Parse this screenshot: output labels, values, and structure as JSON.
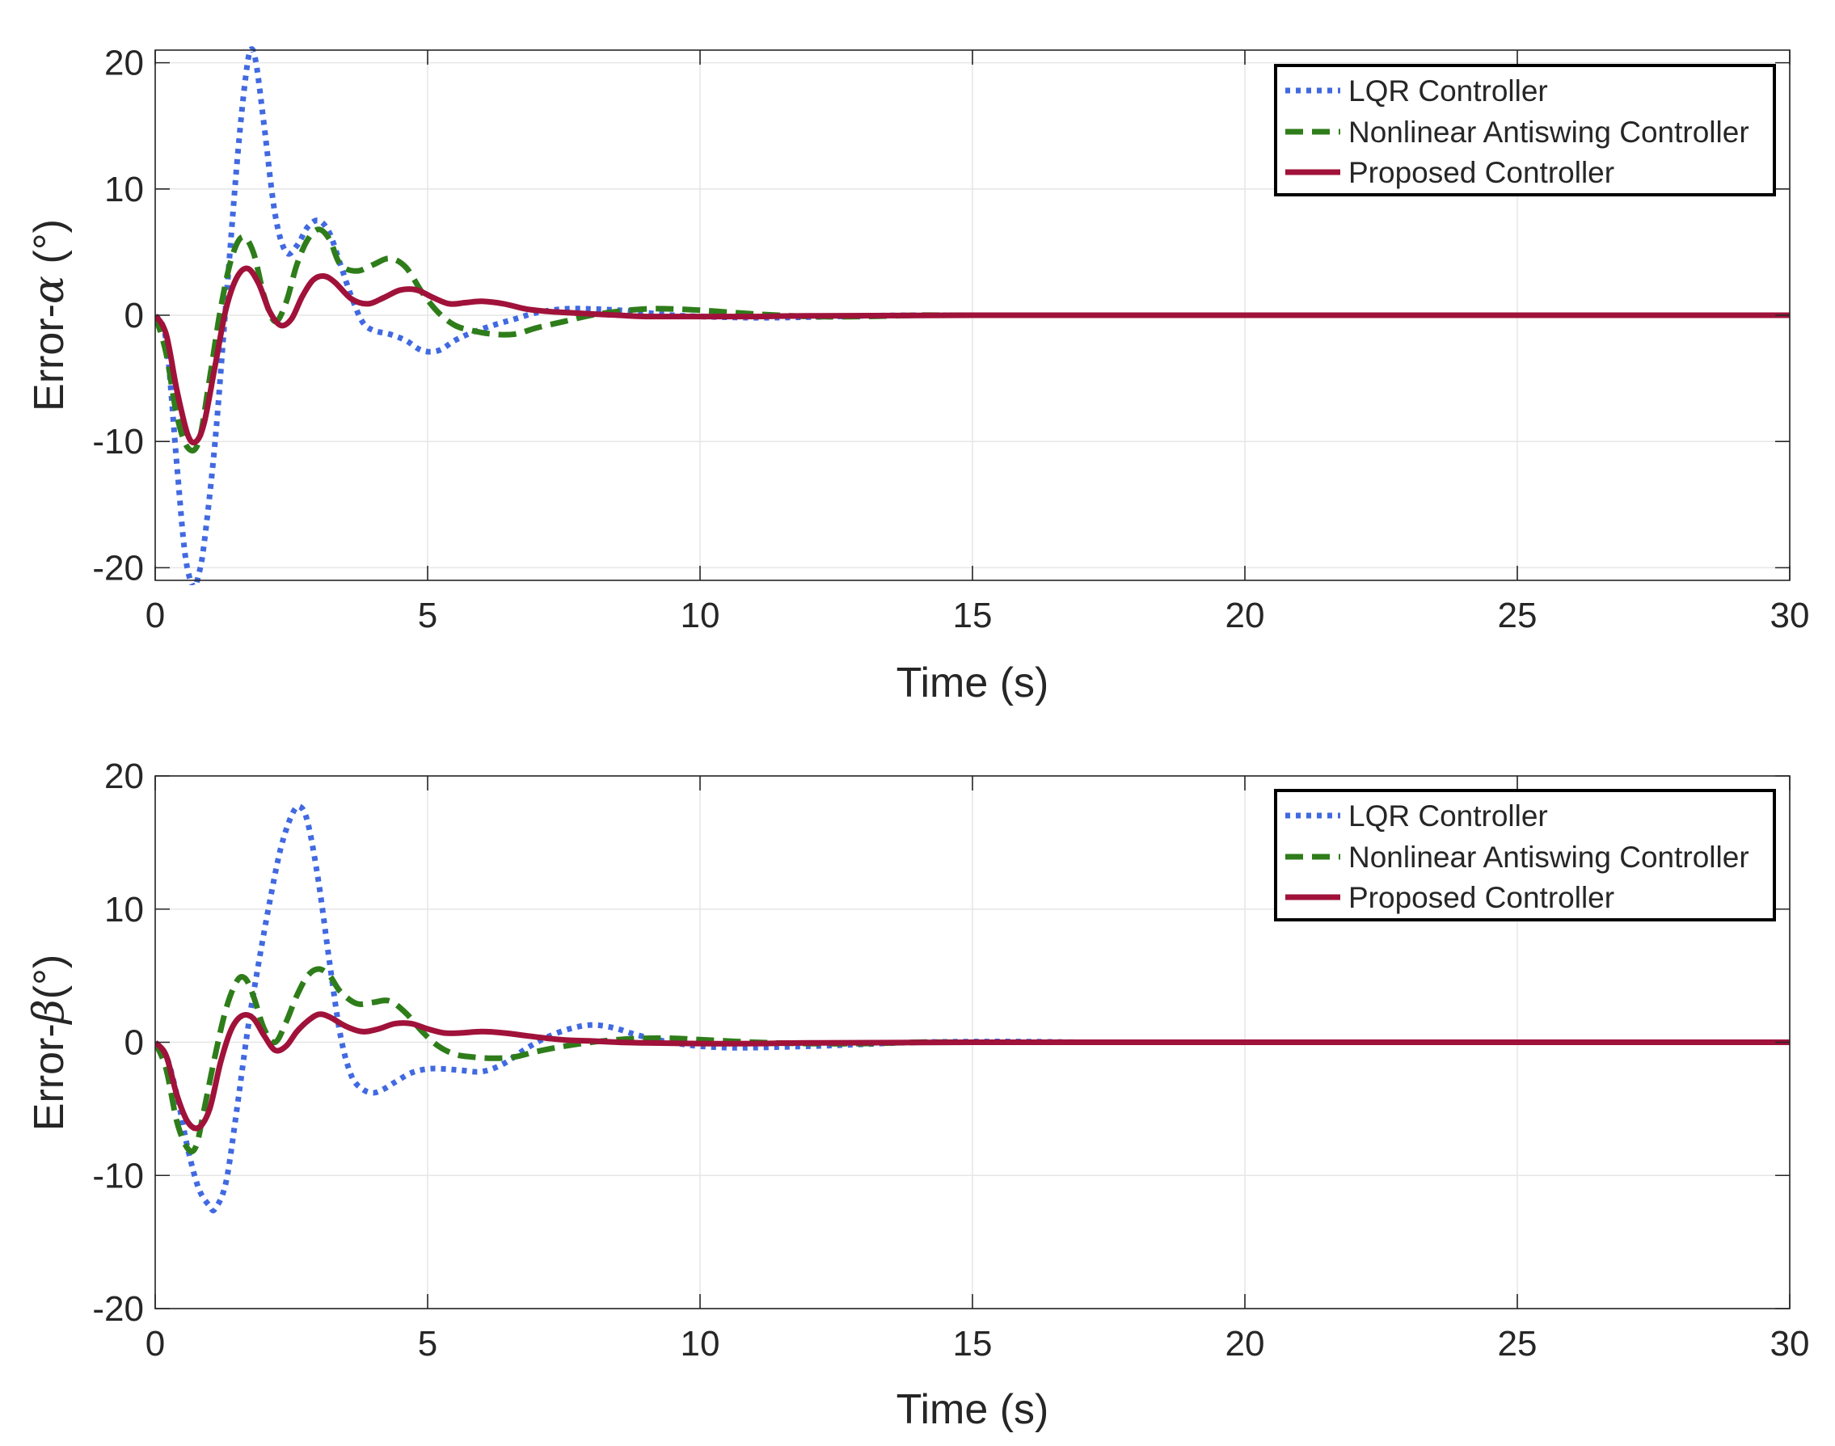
{
  "chart_data": [
    {
      "type": "line",
      "panel": "top",
      "title": "",
      "xlabel": "Time (s)",
      "ylabel_prefix": "Error-",
      "ylabel_symbol": "α",
      "ylabel_suffix": " (°)",
      "xlim": [
        0,
        30
      ],
      "ylim": [
        -21,
        21
      ],
      "xticks": [
        0,
        5,
        10,
        15,
        20,
        25,
        30
      ],
      "yticks": [
        -20,
        -10,
        0,
        10,
        20
      ],
      "xtick_labels": [
        "0",
        "5",
        "10",
        "15",
        "20",
        "25",
        "30"
      ],
      "ytick_labels": [
        "-20",
        "-10",
        "0",
        "10",
        "20"
      ],
      "grid": true,
      "legend_position": "top-right",
      "series": [
        {
          "name": "LQR Controller",
          "color": "#4169E1",
          "style": "dotted",
          "x": [
            0,
            0.2,
            0.4,
            0.55,
            0.7,
            0.8,
            0.9,
            1.1,
            1.3,
            1.5,
            1.65,
            1.75,
            1.85,
            2.0,
            2.2,
            2.4,
            2.6,
            2.8,
            3.0,
            3.2,
            3.4,
            3.6,
            3.8,
            4.0,
            4.3,
            4.6,
            4.9,
            5.2,
            5.5,
            5.8,
            6.2,
            6.6,
            7.0,
            7.5,
            8.0,
            8.5,
            9.0,
            9.5,
            10.0,
            11.0,
            12.0,
            13.0,
            14.0,
            15.0,
            20.0,
            25.0,
            30.0
          ],
          "y": [
            0,
            -2,
            -12,
            -19,
            -21.5,
            -20.5,
            -18,
            -10,
            1,
            12,
            18.5,
            21,
            20,
            15,
            8,
            5,
            5.5,
            7,
            7.5,
            6.5,
            4,
            1.5,
            -0.5,
            -1.2,
            -1.5,
            -2,
            -2.8,
            -2.8,
            -2,
            -1.4,
            -0.8,
            -0.3,
            0.2,
            0.5,
            0.5,
            0.4,
            0.2,
            0.0,
            -0.1,
            -0.2,
            -0.15,
            -0.05,
            0.0,
            0.0,
            0.0,
            0.0,
            0.0
          ]
        },
        {
          "name": "Nonlinear Antiswing Controller",
          "color": "#2E7D1A",
          "style": "dashed",
          "x": [
            0,
            0.2,
            0.4,
            0.6,
            0.8,
            1.0,
            1.2,
            1.4,
            1.6,
            1.8,
            2.0,
            2.2,
            2.4,
            2.6,
            2.8,
            3.0,
            3.2,
            3.4,
            3.7,
            4.0,
            4.3,
            4.6,
            4.9,
            5.2,
            5.5,
            5.8,
            6.2,
            6.6,
            7.0,
            7.5,
            8.0,
            8.5,
            9.0,
            9.5,
            10.0,
            11.0,
            12.0,
            13.0,
            14.0,
            15.0,
            20.0,
            25.0,
            30.0
          ],
          "y": [
            0,
            -3,
            -8,
            -10.5,
            -10,
            -5,
            0.5,
            4.5,
            6.2,
            5,
            1.5,
            -0.5,
            1,
            4,
            6,
            6.8,
            6,
            4,
            3.5,
            4,
            4.5,
            3.8,
            1.8,
            0.2,
            -0.8,
            -1.2,
            -1.5,
            -1.5,
            -1.0,
            -0.5,
            0.0,
            0.3,
            0.5,
            0.5,
            0.4,
            0.1,
            -0.1,
            -0.1,
            0.0,
            0.0,
            0.0,
            0.0,
            0.0
          ]
        },
        {
          "name": "Proposed Controller",
          "color": "#A0123A",
          "style": "solid",
          "x": [
            0,
            0.2,
            0.4,
            0.6,
            0.75,
            0.9,
            1.1,
            1.3,
            1.5,
            1.7,
            1.9,
            2.1,
            2.3,
            2.5,
            2.7,
            2.9,
            3.1,
            3.3,
            3.6,
            3.9,
            4.2,
            4.5,
            4.8,
            5.1,
            5.4,
            5.7,
            6.0,
            6.4,
            6.8,
            7.2,
            7.6,
            8.0,
            8.5,
            9.0,
            10.0,
            11.0,
            12.0,
            15.0,
            20.0,
            25.0,
            30.0
          ],
          "y": [
            0,
            -1.5,
            -6,
            -9.5,
            -10,
            -8.5,
            -4,
            0.5,
            3,
            3.7,
            2.5,
            0.3,
            -0.8,
            -0.3,
            1.5,
            2.8,
            3.1,
            2.6,
            1.3,
            0.9,
            1.4,
            2.0,
            2.0,
            1.4,
            0.9,
            1.0,
            1.1,
            0.9,
            0.5,
            0.3,
            0.2,
            0.1,
            0.0,
            -0.1,
            -0.1,
            -0.1,
            -0.05,
            0.0,
            0.0,
            0.0,
            0.0
          ]
        }
      ]
    },
    {
      "type": "line",
      "panel": "bottom",
      "title": "",
      "xlabel": "Time (s)",
      "ylabel_prefix": "Error-",
      "ylabel_symbol": "β",
      "ylabel_suffix": "(°)",
      "xlim": [
        0,
        30
      ],
      "ylim": [
        -20,
        20
      ],
      "xticks": [
        0,
        5,
        10,
        15,
        20,
        25,
        30
      ],
      "yticks": [
        -20,
        -10,
        0,
        10,
        20
      ],
      "xtick_labels": [
        "0",
        "5",
        "10",
        "15",
        "20",
        "25",
        "30"
      ],
      "ytick_labels": [
        "-20",
        "-10",
        "0",
        "10",
        "20"
      ],
      "grid": true,
      "legend_position": "top-right",
      "series": [
        {
          "name": "LQR Controller",
          "color": "#4169E1",
          "style": "dotted",
          "x": [
            0,
            0.2,
            0.4,
            0.6,
            0.8,
            1.0,
            1.1,
            1.3,
            1.5,
            1.7,
            1.9,
            2.1,
            2.3,
            2.5,
            2.65,
            2.8,
            3.0,
            3.2,
            3.4,
            3.6,
            3.8,
            4.0,
            4.2,
            4.4,
            4.7,
            5.0,
            5.3,
            5.6,
            6.0,
            6.4,
            6.8,
            7.2,
            7.6,
            8.0,
            8.4,
            8.8,
            9.2,
            9.6,
            10.0,
            10.5,
            11.0,
            12.0,
            13.0,
            14.0,
            15.0,
            16.0,
            17.0,
            18.0,
            20.0,
            25.0,
            30.0
          ],
          "y": [
            0,
            -1,
            -4,
            -8,
            -11,
            -12.3,
            -12.5,
            -10.5,
            -5,
            1,
            6,
            10.5,
            14.5,
            17,
            17.7,
            16.5,
            12,
            6,
            0.5,
            -2.5,
            -3.5,
            -3.8,
            -3.5,
            -3,
            -2.3,
            -2,
            -2,
            -2.1,
            -2.2,
            -1.6,
            -0.5,
            0.4,
            1.0,
            1.3,
            1.1,
            0.6,
            0.2,
            -0.1,
            -0.3,
            -0.4,
            -0.4,
            -0.3,
            -0.15,
            0.0,
            0.05,
            0.05,
            0.0,
            0.0,
            0.0,
            0.0,
            0.0
          ]
        },
        {
          "name": "Nonlinear Antiswing Controller",
          "color": "#2E7D1A",
          "style": "dashed",
          "x": [
            0,
            0.2,
            0.4,
            0.6,
            0.75,
            0.9,
            1.1,
            1.3,
            1.5,
            1.65,
            1.8,
            2.0,
            2.2,
            2.4,
            2.6,
            2.8,
            3.0,
            3.2,
            3.4,
            3.7,
            4.0,
            4.3,
            4.6,
            4.9,
            5.2,
            5.5,
            5.8,
            6.2,
            6.6,
            7.0,
            7.5,
            8.0,
            8.5,
            9.0,
            9.5,
            10.0,
            11.0,
            12.0,
            13.0,
            14.0,
            15.0,
            20.0,
            25.0,
            30.0
          ],
          "y": [
            0,
            -2,
            -6,
            -8,
            -7.8,
            -5,
            -1,
            2.5,
            4.6,
            4.8,
            3.5,
            1,
            0,
            1.5,
            3.5,
            5,
            5.5,
            5,
            3.8,
            2.9,
            3,
            3.1,
            2.2,
            0.8,
            -0.3,
            -0.9,
            -1.1,
            -1.2,
            -1.1,
            -0.7,
            -0.3,
            0.0,
            0.2,
            0.3,
            0.3,
            0.2,
            0.0,
            -0.1,
            -0.1,
            0.0,
            0.0,
            0.0,
            0.0,
            0.0
          ]
        },
        {
          "name": "Proposed Controller",
          "color": "#A0123A",
          "style": "solid",
          "x": [
            0,
            0.2,
            0.4,
            0.6,
            0.8,
            1.0,
            1.2,
            1.4,
            1.6,
            1.8,
            2.0,
            2.2,
            2.4,
            2.6,
            2.8,
            3.0,
            3.2,
            3.5,
            3.8,
            4.1,
            4.4,
            4.7,
            5.0,
            5.3,
            5.6,
            6.0,
            6.4,
            6.8,
            7.2,
            7.6,
            8.0,
            8.5,
            9.0,
            10.0,
            11.0,
            12.0,
            15.0,
            20.0,
            25.0,
            30.0
          ],
          "y": [
            0,
            -1,
            -4,
            -6,
            -6.4,
            -5,
            -1.5,
            1,
            2,
            1.8,
            0.5,
            -0.6,
            -0.3,
            0.8,
            1.6,
            2.1,
            1.9,
            1.2,
            0.8,
            1.0,
            1.4,
            1.4,
            1.0,
            0.7,
            0.7,
            0.8,
            0.7,
            0.5,
            0.3,
            0.15,
            0.1,
            0.0,
            -0.05,
            -0.1,
            -0.1,
            -0.05,
            0.0,
            0.0,
            0.0,
            0.0
          ]
        }
      ]
    }
  ]
}
